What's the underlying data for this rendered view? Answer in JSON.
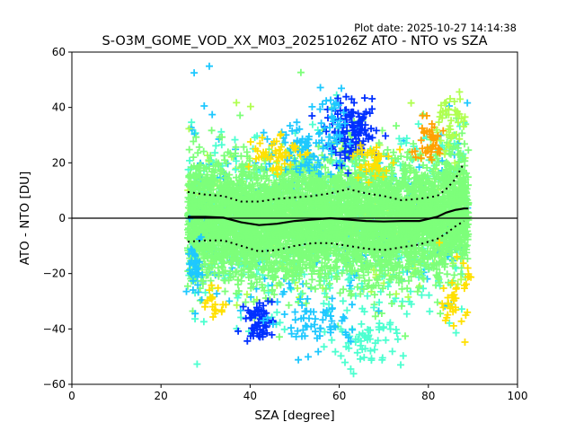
{
  "chart_data": {
    "type": "scatter",
    "plot_date": "Plot date: 2025-10-27 14:14:38",
    "title": "S-O3M_GOME_VOD_XX_M03_20251026Z ATO - NTO vs SZA",
    "xlabel": "SZA [degree]",
    "ylabel": "ATO - NTO [DU]",
    "xlim": [
      0,
      100
    ],
    "ylim": [
      -60,
      60
    ],
    "xticks": [
      0,
      20,
      40,
      60,
      80,
      100
    ],
    "yticks": [
      -60,
      -40,
      -20,
      0,
      20,
      40,
      60
    ],
    "colors": {
      "dense": "#7dff7a",
      "mid": "#4dffd0",
      "cyan": "#1ec8ff",
      "blue": "#0030ff",
      "yellow": "#ffe000",
      "orange": "#ffa000",
      "lime": "#b0ff50",
      "line": "#000000"
    },
    "sza_range": [
      26,
      89
    ],
    "mean_line": {
      "x": [
        26,
        30,
        34,
        38,
        42,
        46,
        50,
        54,
        58,
        62,
        66,
        70,
        74,
        78,
        82,
        84,
        86,
        88,
        89
      ],
      "y": [
        0.5,
        0.5,
        0.2,
        -1.5,
        -2.5,
        -2.0,
        -1.0,
        -0.5,
        0.0,
        -0.5,
        -1.0,
        -1.2,
        -1.0,
        -1.0,
        0.5,
        2.0,
        3.0,
        3.5,
        3.5
      ]
    },
    "upper_sigma": {
      "x": [
        26,
        30,
        34,
        38,
        42,
        46,
        50,
        54,
        58,
        62,
        66,
        70,
        74,
        78,
        82,
        84,
        86,
        88
      ],
      "y": [
        9.5,
        8.5,
        8.0,
        6.0,
        6.0,
        7.0,
        7.5,
        8.0,
        9.0,
        10.5,
        9.0,
        8.0,
        6.5,
        7.0,
        8.0,
        10.5,
        14.0,
        20.0
      ]
    },
    "lower_sigma": {
      "x": [
        26,
        30,
        34,
        38,
        42,
        46,
        50,
        54,
        58,
        62,
        66,
        70,
        74,
        78,
        82,
        84,
        86,
        88
      ],
      "y": [
        -8.5,
        -8.0,
        -8.0,
        -10.0,
        -12.0,
        -11.5,
        -10.0,
        -9.0,
        -9.0,
        -10.0,
        -11.0,
        -11.5,
        -10.5,
        -9.5,
        -7.5,
        -5.5,
        -3.0,
        -1.0
      ]
    }
  }
}
